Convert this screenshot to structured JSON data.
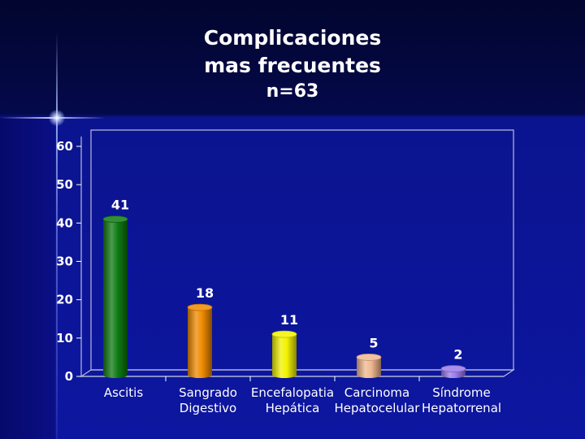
{
  "slide": {
    "title_line1": "Complicaciones",
    "title_line2": "mas frecuentes",
    "title_line3": "n=63"
  },
  "chart_data": {
    "type": "bar",
    "categories": [
      [
        "Ascitis"
      ],
      [
        "Sangrado",
        "Digestivo"
      ],
      [
        "Encefalopatia",
        "Hepática"
      ],
      [
        "Carcinoma",
        "Hepatocelular"
      ],
      [
        "Síndrome",
        "Hepatorrenal"
      ]
    ],
    "values": [
      41,
      18,
      11,
      5,
      2
    ],
    "data_labels": [
      "41",
      "18",
      "11",
      "5",
      "2"
    ],
    "colors": [
      "#0f7a12",
      "#f08a00",
      "#f2f200",
      "#f0b890",
      "#9a7ae8"
    ],
    "ylim": [
      0,
      60
    ],
    "yticks": [
      0,
      10,
      20,
      30,
      40,
      50,
      60
    ],
    "grid": false,
    "legend": "none"
  }
}
